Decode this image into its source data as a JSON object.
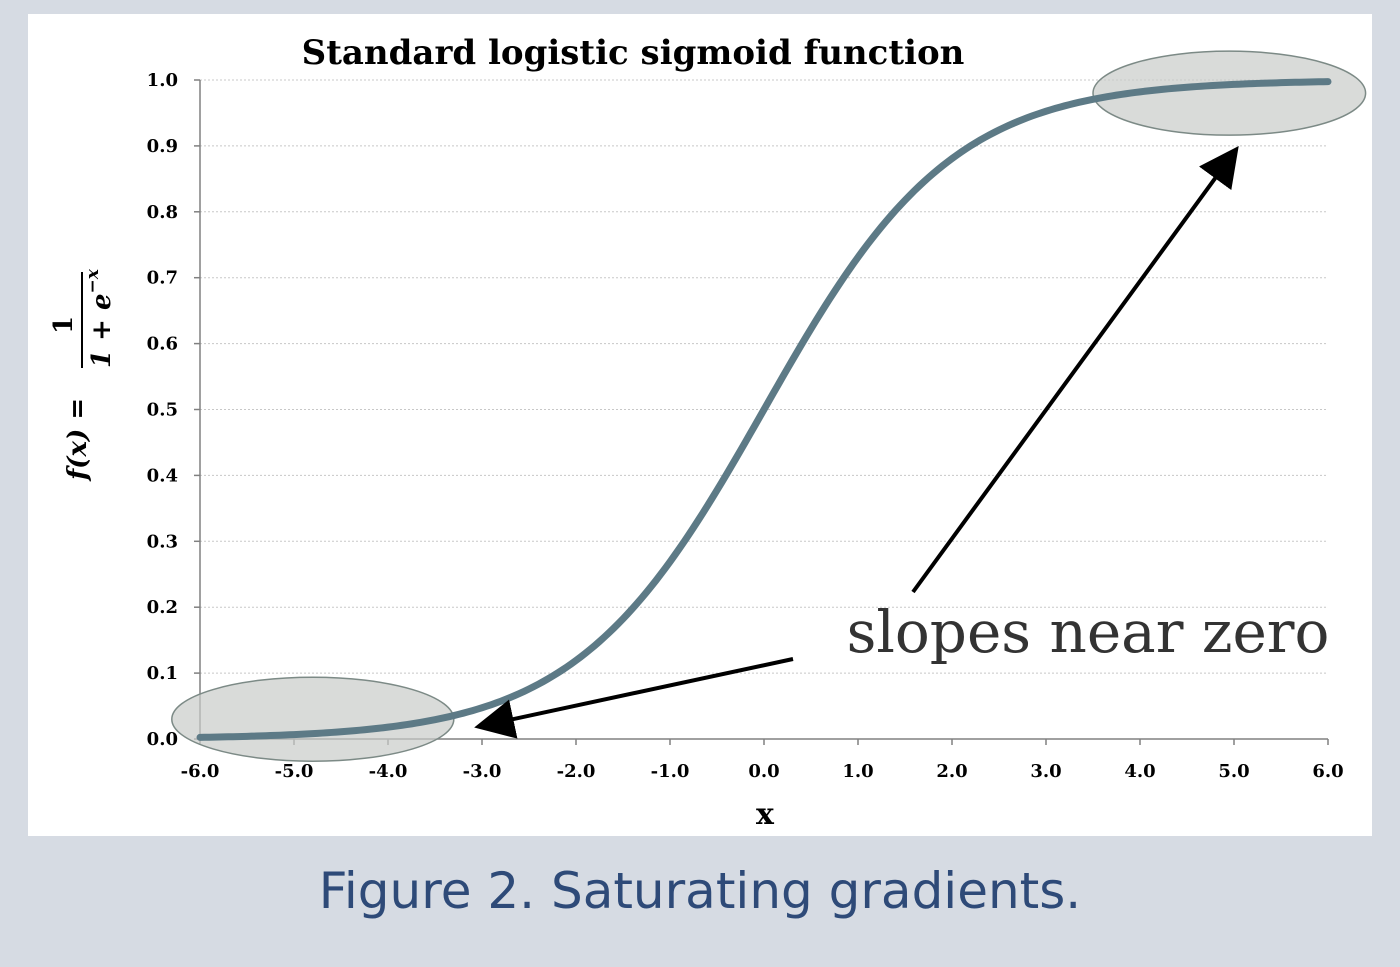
{
  "caption": "Figure 2. Saturating gradients.",
  "colors": {
    "background": "#d6dbe3",
    "panel": "#ffffff",
    "curve": "#5d7a86",
    "caption": "#2e4a78",
    "highlight_fill": "#c9ccc9",
    "highlight_stroke": "#7c8a86",
    "arrow": "#000000"
  },
  "annotation": {
    "text": "slopes near zero"
  },
  "chart_data": {
    "type": "line",
    "title": "Standard logistic sigmoid function",
    "xlabel": "x",
    "ylabel": "f(x) = 1 / (1 + e^{-x})",
    "ylabel_parts": {
      "lhs": "f(x) =",
      "numerator": "1",
      "denominator_base": "1 + e",
      "denominator_exp": "−x"
    },
    "xlim": [
      -6.0,
      6.0
    ],
    "ylim": [
      0.0,
      1.0
    ],
    "xticks": [
      "-6.0",
      "-5.0",
      "-4.0",
      "-3.0",
      "-2.0",
      "-1.0",
      "0.0",
      "1.0",
      "2.0",
      "3.0",
      "4.0",
      "5.0",
      "6.0"
    ],
    "yticks": [
      "0.0",
      "0.1",
      "0.2",
      "0.3",
      "0.4",
      "0.5",
      "0.6",
      "0.7",
      "0.8",
      "0.9",
      "1.0"
    ],
    "grid": true,
    "series": [
      {
        "x": [
          -6.0,
          -5.5,
          -5.0,
          -4.5,
          -4.0,
          -3.5,
          -3.0,
          -2.5,
          -2.0,
          -1.5,
          -1.0,
          -0.5,
          0.0,
          0.5,
          1.0,
          1.5,
          2.0,
          2.5,
          3.0,
          3.5,
          4.0,
          4.5,
          5.0,
          5.5,
          6.0
        ],
        "y": [
          0.0025,
          0.0041,
          0.0067,
          0.011,
          0.018,
          0.0293,
          0.0474,
          0.0759,
          0.1192,
          0.1824,
          0.2689,
          0.3775,
          0.5,
          0.6225,
          0.7311,
          0.8176,
          0.8808,
          0.9241,
          0.9526,
          0.9707,
          0.982,
          0.989,
          0.9933,
          0.9959,
          0.9975
        ]
      }
    ],
    "highlighted_regions": [
      {
        "x_range": [
          -6.3,
          -3.3
        ],
        "y_center": 0.03
      },
      {
        "x_range": [
          3.5,
          6.4
        ],
        "y_center": 0.98
      }
    ],
    "annotations": [
      {
        "text": "slopes near zero",
        "arrows_to": [
          [
            -3.0,
            0.02
          ],
          [
            5.0,
            0.89
          ]
        ]
      }
    ]
  }
}
